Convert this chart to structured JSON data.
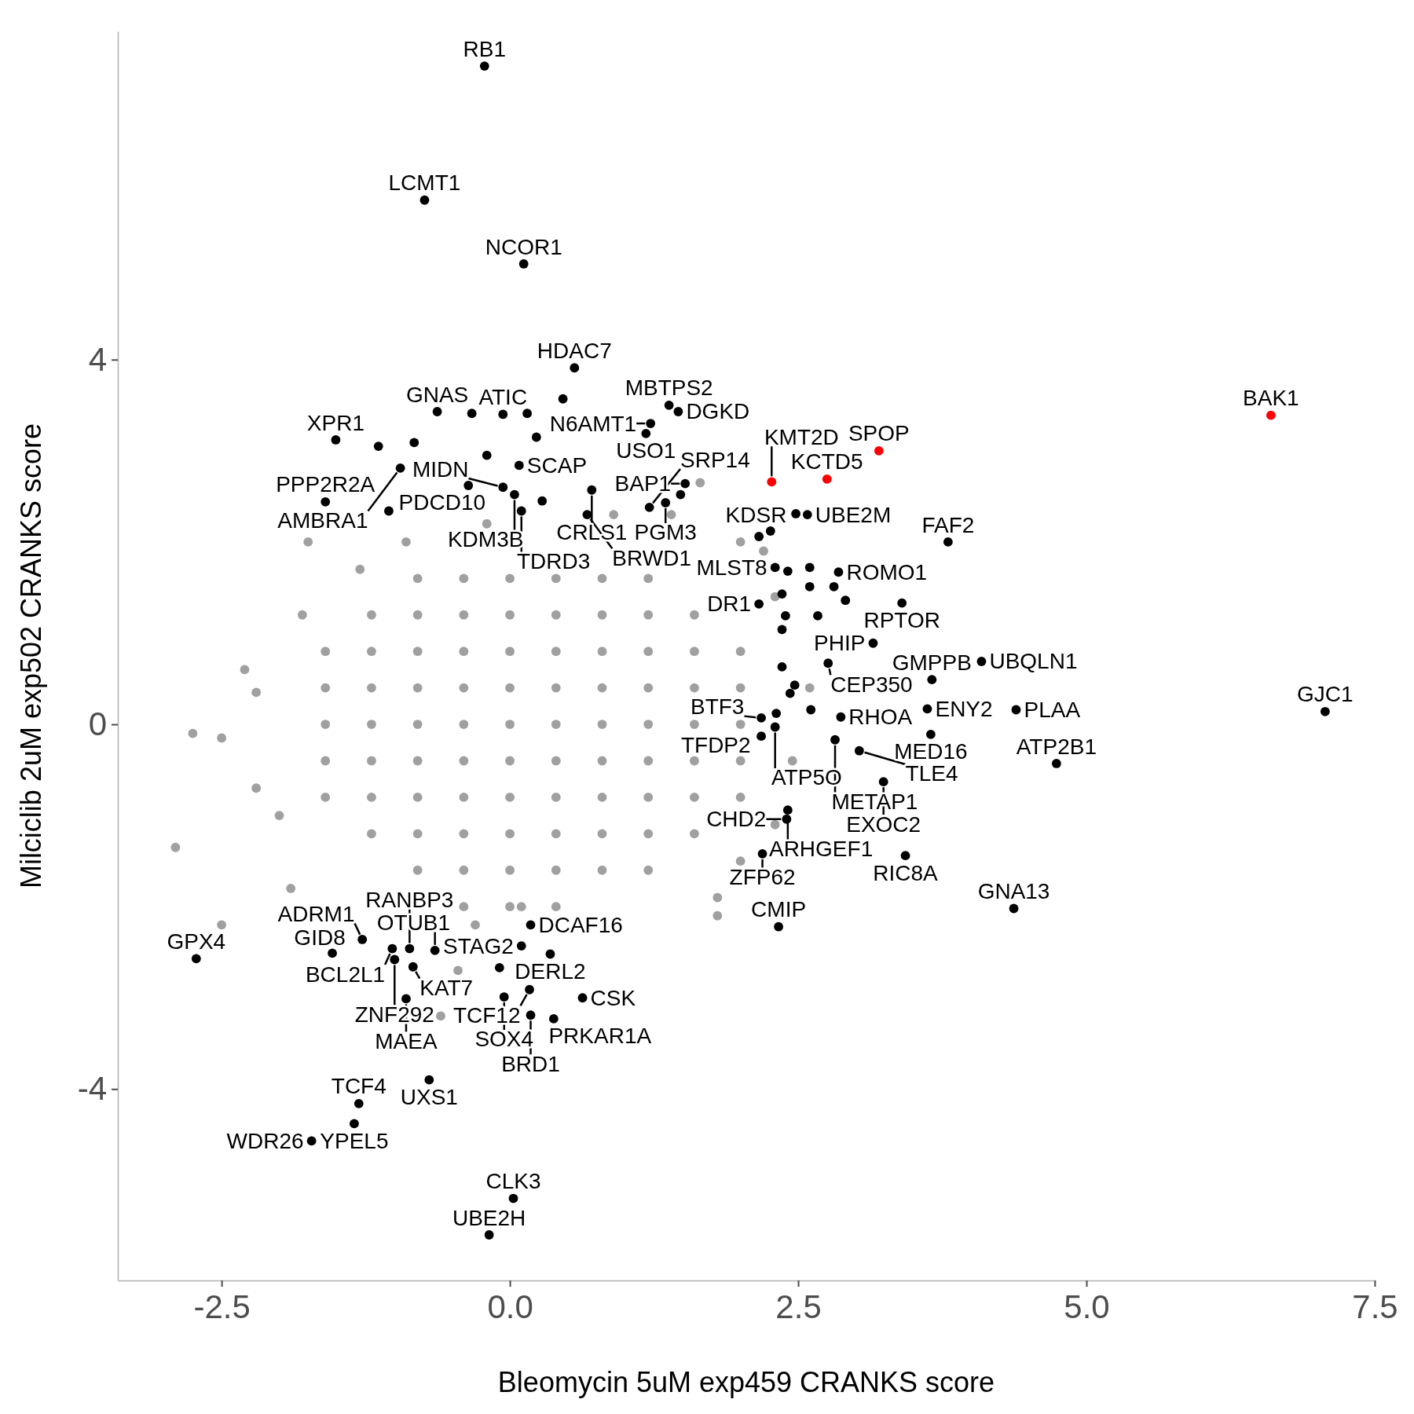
{
  "chart_data": {
    "type": "scatter",
    "xlabel": "Bleomycin 5uM exp459 CRANKS score",
    "ylabel": "Milciclib 2uM exp502 CRANKS score",
    "xlim": [
      -3.4,
      7.5
    ],
    "ylim": [
      -6.1,
      7.6
    ],
    "xticks": [
      {
        "value": -2.5,
        "label": "-2.5"
      },
      {
        "value": 0,
        "label": "0.0"
      },
      {
        "value": 2.5,
        "label": "2.5"
      },
      {
        "value": 5,
        "label": "5.0"
      },
      {
        "value": 7.5,
        "label": "7.5"
      }
    ],
    "yticks": [
      -4,
      0,
      4
    ],
    "grid": false,
    "marker": "circle",
    "series": [
      {
        "color": "#a0a0a0",
        "x": [
          -0.8,
          -0.4,
          0,
          0.4,
          0.8,
          1.2,
          -1.2,
          -0.8,
          -0.4,
          0,
          0.4,
          0.8,
          1.2,
          1.6,
          -1.6,
          -1.2,
          -0.8,
          -0.4,
          0,
          0.4,
          0.8,
          1.2,
          1.6,
          2.0,
          -1.6,
          -1.2,
          -0.8,
          -0.4,
          0,
          0.4,
          0.8,
          1.2,
          1.6,
          2.0,
          -1.6,
          -1.2,
          -0.8,
          -0.4,
          0,
          0.4,
          0.8,
          1.2,
          1.6,
          2.0,
          -1.6,
          -1.2,
          -0.8,
          -0.4,
          0,
          0.4,
          0.8,
          1.2,
          1.6,
          2.0,
          -1.6,
          -1.2,
          -0.8,
          -0.4,
          0,
          0.4,
          0.8,
          1.2,
          1.6,
          2.0,
          -1.2,
          -0.8,
          -0.4,
          0,
          0.4,
          0.8,
          1.2,
          1.6,
          -0.8,
          -0.4,
          0,
          0.4,
          0.8,
          1.2,
          -0.4,
          0,
          0.4,
          -2.75,
          -2.5,
          -2.2,
          -2.9,
          -2.3,
          -1.8,
          -1.75,
          -2.5,
          -2.2,
          -0.6,
          -0.45,
          -0.3,
          0.1,
          1.8,
          2.0,
          2.3,
          2.45,
          2.6,
          2.3,
          2.0,
          1.65,
          0.9,
          -0.2,
          -0.9,
          -1.3,
          1.8,
          2.2,
          1.4,
          -2.0,
          -1.9
        ],
        "values": [
          1.6,
          1.6,
          1.6,
          1.6,
          1.6,
          1.6,
          1.2,
          1.2,
          1.2,
          1.2,
          1.2,
          1.2,
          1.2,
          1.2,
          0.8,
          0.8,
          0.8,
          0.8,
          0.8,
          0.8,
          0.8,
          0.8,
          0.8,
          0.8,
          0.4,
          0.4,
          0.4,
          0.4,
          0.4,
          0.4,
          0.4,
          0.4,
          0.4,
          0.4,
          0,
          0,
          0,
          0,
          0,
          0,
          0,
          0,
          0,
          0,
          -0.4,
          -0.4,
          -0.4,
          -0.4,
          -0.4,
          -0.4,
          -0.4,
          -0.4,
          -0.4,
          -0.4,
          -0.8,
          -0.8,
          -0.8,
          -0.8,
          -0.8,
          -0.8,
          -0.8,
          -0.8,
          -0.8,
          -0.8,
          -1.2,
          -1.2,
          -1.2,
          -1.2,
          -1.2,
          -1.2,
          -1.2,
          -1.2,
          -1.6,
          -1.6,
          -1.6,
          -1.6,
          -1.6,
          -1.6,
          -2.0,
          -2.0,
          -2.0,
          -0.1,
          -0.15,
          -0.7,
          -1.35,
          0.6,
          1.2,
          2.0,
          -2.2,
          0.35,
          -3.2,
          -2.7,
          -2.2,
          -2.0,
          -1.9,
          -1.5,
          -1.1,
          -0.4,
          0.4,
          1.4,
          2.0,
          2.65,
          2.3,
          2.2,
          2.0,
          1.7,
          -2.1,
          1.9,
          2.3,
          -1.0,
          -1.8
        ]
      },
      {
        "color": "#000000",
        "x": [
          -0.22,
          -0.74,
          0.12,
          0.56,
          1.38,
          1.46,
          1.22,
          1.18,
          1.52,
          -0.06,
          -0.63,
          -1.51,
          -1.6,
          -0.95,
          -1.05,
          0.08,
          0.71,
          2.58,
          2.26,
          0.04,
          0.1,
          0.67,
          3.8,
          2.85,
          3.4,
          3.66,
          2.3,
          -0.06,
          1.35,
          1.21,
          2.16,
          3.15,
          4.09,
          3.62,
          2.76,
          2.87,
          4.39,
          7.07,
          3.65,
          2.18,
          4.74,
          2.18,
          2.3,
          2.82,
          3.03,
          3.24,
          2.41,
          2.4,
          2.19,
          3.43,
          4.37,
          2.33,
          0.18,
          0.1,
          0.35,
          -0.65,
          -1.02,
          -0.87,
          -2.72,
          -1.54,
          -1.28,
          -1.0,
          -0.84,
          0.17,
          0.63,
          -0.05,
          -0.9,
          0.38,
          0.18,
          -0.7,
          -1.31,
          -1.35,
          -1.72,
          0.03,
          -0.18,
          -1.14,
          -0.83,
          -0.33,
          0.15,
          0.23,
          0.46,
          -0.2,
          -0.36,
          0.28,
          1.48,
          2.48,
          2.16,
          2.6,
          2.41,
          2.36,
          2.6,
          2.81,
          2.91,
          2.67,
          2.36,
          2.39,
          2.36,
          2.47,
          2.43,
          2.61,
          2.31,
          -0.09
        ],
        "values": [
          7.22,
          5.75,
          5.05,
          3.91,
          3.5,
          3.43,
          3.3,
          3.19,
          2.64,
          3.4,
          3.43,
          3.12,
          2.44,
          2.81,
          2.34,
          2.84,
          2.57,
          2.3,
          2.12,
          2.52,
          2.34,
          2.3,
          2.0,
          1.67,
          1.33,
          0.49,
          1.72,
          2.6,
          2.43,
          2.38,
          1.32,
          0.89,
          0.69,
          0.17,
          0.67,
          0.08,
          0.16,
          0.14,
          -0.11,
          0.07,
          -0.43,
          -0.13,
          -0.03,
          -0.17,
          -0.29,
          -0.63,
          -0.94,
          -1.04,
          -1.42,
          -1.44,
          -2.02,
          -2.22,
          -2.2,
          -2.43,
          -2.52,
          -2.48,
          -2.46,
          -2.46,
          -2.57,
          -2.51,
          -2.36,
          -2.58,
          -2.66,
          -2.91,
          -3.0,
          -2.99,
          -3.01,
          -3.23,
          -3.19,
          -3.9,
          -4.16,
          -4.38,
          -4.57,
          -5.2,
          -5.6,
          3.05,
          3.09,
          3.41,
          3.41,
          3.15,
          3.57,
          2.95,
          2.62,
          2.45,
          2.52,
          2.31,
          2.06,
          1.72,
          1.68,
          1.43,
          1.51,
          1.51,
          1.36,
          1.19,
          1.04,
          1.19,
          0.63,
          0.43,
          0.34,
          0.16,
          0.12,
          -2.67
        ]
      },
      {
        "color": "#ff0000",
        "x": [
          6.6,
          3.2,
          2.75,
          2.27
        ],
        "values": [
          3.39,
          3.0,
          2.69,
          2.66
        ]
      }
    ],
    "annotations": [
      {
        "text": "RB1",
        "x": -0.22,
        "y": 7.22
      },
      {
        "text": "LCMT1",
        "x": -0.74,
        "y": 5.75
      },
      {
        "text": "NCOR1",
        "x": 0.12,
        "y": 5.05
      },
      {
        "text": "HDAC7",
        "x": 0.56,
        "y": 3.91
      },
      {
        "text": "MBTPS2",
        "x": 1.38,
        "y": 3.5
      },
      {
        "text": "DGKD",
        "x": 1.46,
        "y": 3.43
      },
      {
        "text": "N6AMT1",
        "x": 1.22,
        "y": 3.3
      },
      {
        "text": "USO1",
        "x": 1.18,
        "y": 3.19
      },
      {
        "text": "BAP1",
        "x": 1.52,
        "y": 2.64
      },
      {
        "text": "ATIC",
        "x": -0.06,
        "y": 3.4
      },
      {
        "text": "GNAS",
        "x": -0.63,
        "y": 3.43
      },
      {
        "text": "XPR1",
        "x": -1.51,
        "y": 3.12
      },
      {
        "text": "PPP2R2A",
        "x": -1.6,
        "y": 2.44
      },
      {
        "text": "AMBRA1",
        "x": -0.95,
        "y": 2.81
      },
      {
        "text": "PDCD10",
        "x": -1.05,
        "y": 2.34
      },
      {
        "text": "SCAP",
        "x": 0.08,
        "y": 2.84
      },
      {
        "text": "CRLS1",
        "x": 0.71,
        "y": 2.57
      },
      {
        "text": "UBE2M",
        "x": 2.58,
        "y": 2.3
      },
      {
        "text": "KDSR",
        "x": 2.26,
        "y": 2.12
      },
      {
        "text": "KDM3B",
        "x": 0.04,
        "y": 2.52
      },
      {
        "text": "TDRD3",
        "x": 0.1,
        "y": 2.34
      },
      {
        "text": "BRWD1",
        "x": 0.67,
        "y": 2.3
      },
      {
        "text": "FAF2",
        "x": 3.8,
        "y": 2.0
      },
      {
        "text": "ROMO1",
        "x": 2.85,
        "y": 1.67
      },
      {
        "text": "RPTOR",
        "x": 3.4,
        "y": 1.33
      },
      {
        "text": "GMPPB",
        "x": 3.66,
        "y": 0.49
      },
      {
        "text": "MLST8",
        "x": 2.3,
        "y": 1.72
      },
      {
        "text": "MIDN",
        "x": -0.06,
        "y": 2.6
      },
      {
        "text": "PGM3",
        "x": 1.35,
        "y": 2.43
      },
      {
        "text": "SRP14",
        "x": 1.21,
        "y": 2.38
      },
      {
        "text": "DR1",
        "x": 2.16,
        "y": 1.32
      },
      {
        "text": "PHIP",
        "x": 3.15,
        "y": 0.89
      },
      {
        "text": "UBQLN1",
        "x": 4.09,
        "y": 0.69
      },
      {
        "text": "ENY2",
        "x": 3.62,
        "y": 0.17
      },
      {
        "text": "CEP350",
        "x": 2.76,
        "y": 0.67
      },
      {
        "text": "RHOA",
        "x": 2.87,
        "y": 0.08
      },
      {
        "text": "PLAA",
        "x": 4.39,
        "y": 0.16
      },
      {
        "text": "GJC1",
        "x": 7.07,
        "y": 0.14
      },
      {
        "text": "MED16",
        "x": 3.65,
        "y": -0.11
      },
      {
        "text": "BTF3",
        "x": 2.18,
        "y": 0.07
      },
      {
        "text": "ATP2B1",
        "x": 4.74,
        "y": -0.43
      },
      {
        "text": "TFDP2",
        "x": 2.18,
        "y": -0.13
      },
      {
        "text": "ATP5O",
        "x": 2.3,
        "y": -0.03
      },
      {
        "text": "METAP1",
        "x": 2.82,
        "y": -0.17
      },
      {
        "text": "TLE4",
        "x": 3.03,
        "y": -0.29
      },
      {
        "text": "EXOC2",
        "x": 3.24,
        "y": -0.63
      },
      {
        "text": "ARHGEF1",
        "x": 2.41,
        "y": -0.94
      },
      {
        "text": "CHD2",
        "x": 2.4,
        "y": -1.04
      },
      {
        "text": "ZFP62",
        "x": 2.19,
        "y": -1.42
      },
      {
        "text": "RIC8A",
        "x": 3.43,
        "y": -1.44
      },
      {
        "text": "GNA13",
        "x": 4.37,
        "y": -2.02
      },
      {
        "text": "CMIP",
        "x": 2.33,
        "y": -2.22
      },
      {
        "text": "DCAF16",
        "x": 0.18,
        "y": -2.2
      },
      {
        "text": "STAG2",
        "x": 0.1,
        "y": -2.43
      },
      {
        "text": "DERL2",
        "x": 0.35,
        "y": -2.52
      },
      {
        "text": "OTUB1",
        "x": -0.65,
        "y": -2.48
      },
      {
        "text": "BCL2L1",
        "x": -1.02,
        "y": -2.46
      },
      {
        "text": "RANBP3",
        "x": -0.87,
        "y": -2.46
      },
      {
        "text": "GPX4",
        "x": -2.72,
        "y": -2.57
      },
      {
        "text": "GID8",
        "x": -1.54,
        "y": -2.51
      },
      {
        "text": "ADRM1",
        "x": -1.28,
        "y": -2.36
      },
      {
        "text": "ZNF292",
        "x": -1.0,
        "y": -2.58
      },
      {
        "text": "KAT7",
        "x": -0.84,
        "y": -2.66
      },
      {
        "text": "TCF12",
        "x": 0.17,
        "y": -2.91
      },
      {
        "text": "CSK",
        "x": 0.63,
        "y": -3.0
      },
      {
        "text": "SOX4",
        "x": -0.05,
        "y": -2.99
      },
      {
        "text": "MAEA",
        "x": -0.9,
        "y": -3.01
      },
      {
        "text": "PRKAR1A",
        "x": 0.38,
        "y": -3.23
      },
      {
        "text": "BRD1",
        "x": 0.18,
        "y": -3.19
      },
      {
        "text": "UXS1",
        "x": -0.7,
        "y": -3.9
      },
      {
        "text": "TCF4",
        "x": -1.31,
        "y": -4.16
      },
      {
        "text": "YPEL5",
        "x": -1.35,
        "y": -4.38
      },
      {
        "text": "WDR26",
        "x": -1.72,
        "y": -4.57
      },
      {
        "text": "CLK3",
        "x": 0.03,
        "y": -5.2
      },
      {
        "text": "UBE2H",
        "x": -0.18,
        "y": -5.6
      },
      {
        "text": "BAK1",
        "x": 6.6,
        "y": 3.39
      },
      {
        "text": "SPOP",
        "x": 3.2,
        "y": 3.0
      },
      {
        "text": "KCTD5",
        "x": 2.75,
        "y": 2.69
      },
      {
        "text": "KMT2D",
        "x": 2.27,
        "y": 2.66
      }
    ]
  }
}
